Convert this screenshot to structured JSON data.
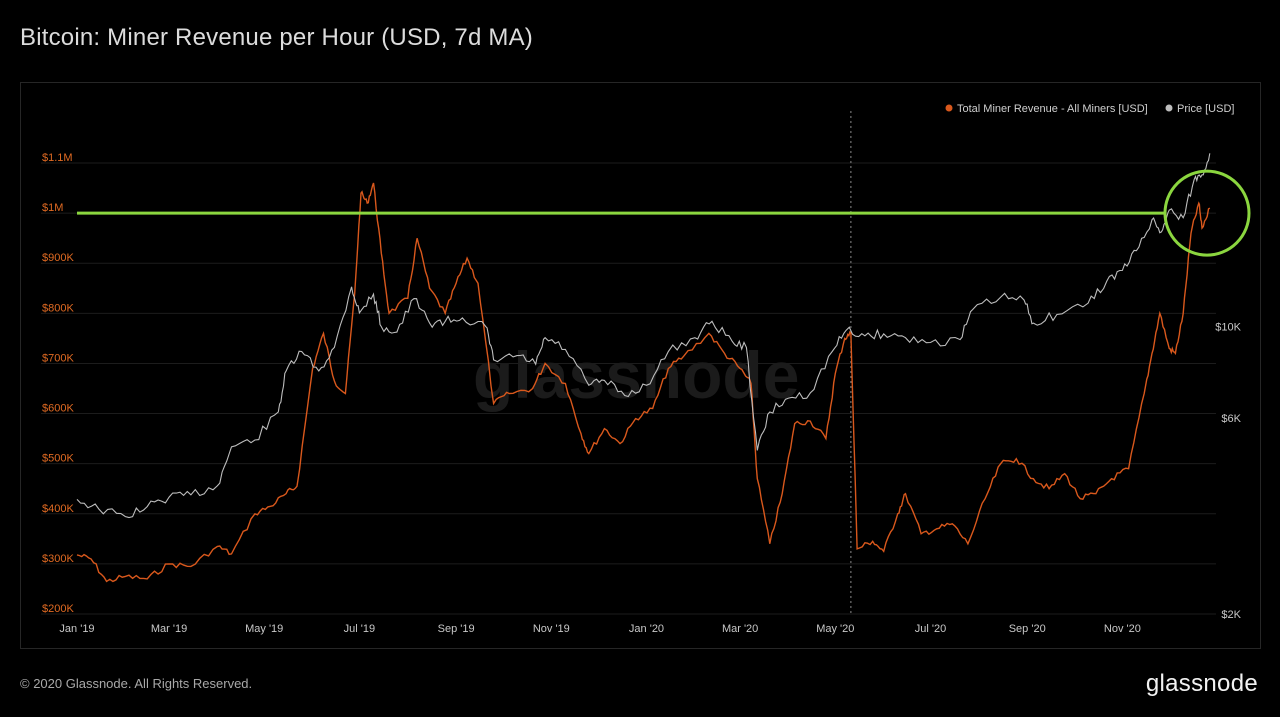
{
  "title": "Bitcoin: Miner Revenue per Hour (USD, 7d MA)",
  "footer": "© 2020 Glassnode. All Rights Reserved.",
  "brand": "glassnode",
  "watermark": "glassnode",
  "colors": {
    "revenue": "#d9581c",
    "price": "#bdbdbd",
    "hline": "#8bd63f",
    "grid": "#1c1c1c"
  },
  "chart_data": {
    "type": "line",
    "title": "Bitcoin: Miner Revenue per Hour (USD, 7d MA)",
    "legend": {
      "placement": "top-right"
    },
    "grid": true,
    "x": {
      "range": [
        "2019-01-01",
        "2020-12-31"
      ],
      "ticks": [
        {
          "date": "2019-01-01",
          "label": "Jan '19"
        },
        {
          "date": "2019-03-01",
          "label": "Mar '19"
        },
        {
          "date": "2019-05-01",
          "label": "May '19"
        },
        {
          "date": "2019-07-01",
          "label": "Jul '19"
        },
        {
          "date": "2019-09-01",
          "label": "Sep '19"
        },
        {
          "date": "2019-11-01",
          "label": "Nov '19"
        },
        {
          "date": "2020-01-01",
          "label": "Jan '20"
        },
        {
          "date": "2020-03-01",
          "label": "Mar '20"
        },
        {
          "date": "2020-05-01",
          "label": "May '20"
        },
        {
          "date": "2020-07-01",
          "label": "Jul '20"
        },
        {
          "date": "2020-09-01",
          "label": "Sep '20"
        },
        {
          "date": "2020-11-01",
          "label": "Nov '20"
        }
      ]
    },
    "y_left": {
      "range": [
        200000,
        1100000
      ],
      "ticks": [
        {
          "value": 200000,
          "label": "$200K"
        },
        {
          "value": 300000,
          "label": "$300K"
        },
        {
          "value": 400000,
          "label": "$400K"
        },
        {
          "value": 500000,
          "label": "$500K"
        },
        {
          "value": 600000,
          "label": "$600K"
        },
        {
          "value": 700000,
          "label": "$700K"
        },
        {
          "value": 800000,
          "label": "$800K"
        },
        {
          "value": 900000,
          "label": "$900K"
        },
        {
          "value": 1000000,
          "label": "$1M"
        },
        {
          "value": 1100000,
          "label": "$1.1M"
        }
      ]
    },
    "y_right": {
      "scale": "log",
      "range": [
        2000,
        25000
      ],
      "ticks": [
        {
          "value": 2000,
          "label": "$2K"
        },
        {
          "value": 6000,
          "label": "$6K"
        },
        {
          "value": 10000,
          "label": "$10K"
        }
      ]
    },
    "annotations": {
      "horizontal_line": {
        "value": 1000000,
        "axis": "left"
      },
      "vertical_dotted_line": {
        "date": "2020-05-11"
      },
      "circle": {
        "date": "2020-12-20",
        "value": 1000000
      }
    },
    "series": [
      {
        "name": "Total Miner Revenue - All Miners [USD]",
        "axis": "left",
        "points": [
          [
            "2019-01-01",
            318000
          ],
          [
            "2019-01-10",
            310000
          ],
          [
            "2019-01-20",
            265000
          ],
          [
            "2019-02-01",
            275000
          ],
          [
            "2019-02-15",
            270000
          ],
          [
            "2019-03-01",
            300000
          ],
          [
            "2019-03-15",
            295000
          ],
          [
            "2019-04-01",
            335000
          ],
          [
            "2019-04-10",
            320000
          ],
          [
            "2019-04-25",
            400000
          ],
          [
            "2019-05-05",
            415000
          ],
          [
            "2019-05-15",
            440000
          ],
          [
            "2019-05-22",
            455000
          ],
          [
            "2019-06-01",
            690000
          ],
          [
            "2019-06-08",
            760000
          ],
          [
            "2019-06-15",
            665000
          ],
          [
            "2019-06-22",
            640000
          ],
          [
            "2019-06-28",
            840000
          ],
          [
            "2019-07-02",
            1040000
          ],
          [
            "2019-07-06",
            1020000
          ],
          [
            "2019-07-10",
            1060000
          ],
          [
            "2019-07-15",
            920000
          ],
          [
            "2019-07-20",
            800000
          ],
          [
            "2019-08-01",
            830000
          ],
          [
            "2019-08-07",
            950000
          ],
          [
            "2019-08-15",
            850000
          ],
          [
            "2019-08-25",
            800000
          ],
          [
            "2019-09-01",
            860000
          ],
          [
            "2019-09-08",
            910000
          ],
          [
            "2019-09-15",
            860000
          ],
          [
            "2019-09-25",
            620000
          ],
          [
            "2019-10-05",
            640000
          ],
          [
            "2019-10-20",
            650000
          ],
          [
            "2019-10-28",
            700000
          ],
          [
            "2019-11-10",
            660000
          ],
          [
            "2019-11-20",
            560000
          ],
          [
            "2019-11-25",
            520000
          ],
          [
            "2019-12-05",
            570000
          ],
          [
            "2019-12-15",
            540000
          ],
          [
            "2019-12-25",
            590000
          ],
          [
            "2020-01-05",
            610000
          ],
          [
            "2020-01-15",
            690000
          ],
          [
            "2020-01-25",
            715000
          ],
          [
            "2020-02-10",
            760000
          ],
          [
            "2020-02-20",
            720000
          ],
          [
            "2020-03-01",
            690000
          ],
          [
            "2020-03-08",
            660000
          ],
          [
            "2020-03-12",
            470000
          ],
          [
            "2020-03-20",
            340000
          ],
          [
            "2020-03-28",
            440000
          ],
          [
            "2020-04-05",
            580000
          ],
          [
            "2020-04-15",
            585000
          ],
          [
            "2020-04-25",
            550000
          ],
          [
            "2020-05-01",
            680000
          ],
          [
            "2020-05-07",
            750000
          ],
          [
            "2020-05-11",
            760000
          ],
          [
            "2020-05-15",
            330000
          ],
          [
            "2020-05-25",
            345000
          ],
          [
            "2020-06-01",
            325000
          ],
          [
            "2020-06-10",
            400000
          ],
          [
            "2020-06-15",
            440000
          ],
          [
            "2020-06-25",
            360000
          ],
          [
            "2020-07-05",
            370000
          ],
          [
            "2020-07-15",
            380000
          ],
          [
            "2020-07-25",
            340000
          ],
          [
            "2020-08-05",
            430000
          ],
          [
            "2020-08-15",
            500000
          ],
          [
            "2020-08-25",
            510000
          ],
          [
            "2020-09-05",
            470000
          ],
          [
            "2020-09-15",
            450000
          ],
          [
            "2020-09-25",
            480000
          ],
          [
            "2020-10-05",
            430000
          ],
          [
            "2020-10-15",
            440000
          ],
          [
            "2020-10-25",
            470000
          ],
          [
            "2020-11-05",
            490000
          ],
          [
            "2020-11-15",
            640000
          ],
          [
            "2020-11-20",
            720000
          ],
          [
            "2020-11-25",
            800000
          ],
          [
            "2020-12-01",
            730000
          ],
          [
            "2020-12-05",
            720000
          ],
          [
            "2020-12-10",
            800000
          ],
          [
            "2020-12-15",
            960000
          ],
          [
            "2020-12-20",
            1020000
          ],
          [
            "2020-12-22",
            970000
          ],
          [
            "2020-12-27",
            1010000
          ]
        ]
      },
      {
        "name": "Price [USD]",
        "axis": "right",
        "points": [
          [
            "2019-01-01",
            3800
          ],
          [
            "2019-01-15",
            3600
          ],
          [
            "2019-02-01",
            3450
          ],
          [
            "2019-02-15",
            3650
          ],
          [
            "2019-03-01",
            3850
          ],
          [
            "2019-03-15",
            3900
          ],
          [
            "2019-04-01",
            4100
          ],
          [
            "2019-04-10",
            5100
          ],
          [
            "2019-04-25",
            5300
          ],
          [
            "2019-05-10",
            6200
          ],
          [
            "2019-05-15",
            7800
          ],
          [
            "2019-05-25",
            8700
          ],
          [
            "2019-06-05",
            7800
          ],
          [
            "2019-06-15",
            8900
          ],
          [
            "2019-06-26",
            12500
          ],
          [
            "2019-07-01",
            10800
          ],
          [
            "2019-07-10",
            12000
          ],
          [
            "2019-07-15",
            10000
          ],
          [
            "2019-07-25",
            9700
          ],
          [
            "2019-08-05",
            11700
          ],
          [
            "2019-08-15",
            10200
          ],
          [
            "2019-08-25",
            10300
          ],
          [
            "2019-09-05",
            10500
          ],
          [
            "2019-09-20",
            10000
          ],
          [
            "2019-09-25",
            8300
          ],
          [
            "2019-10-10",
            8500
          ],
          [
            "2019-10-22",
            8100
          ],
          [
            "2019-10-28",
            9400
          ],
          [
            "2019-11-10",
            8800
          ],
          [
            "2019-11-25",
            7200
          ],
          [
            "2019-12-05",
            7400
          ],
          [
            "2019-12-18",
            6800
          ],
          [
            "2020-01-01",
            7200
          ],
          [
            "2020-01-15",
            8700
          ],
          [
            "2020-02-01",
            9400
          ],
          [
            "2020-02-12",
            10300
          ],
          [
            "2020-02-25",
            9200
          ],
          [
            "2020-03-05",
            8900
          ],
          [
            "2020-03-12",
            5000
          ],
          [
            "2020-03-20",
            6200
          ],
          [
            "2020-04-01",
            6700
          ],
          [
            "2020-04-15",
            6900
          ],
          [
            "2020-04-29",
            8700
          ],
          [
            "2020-05-08",
            9800
          ],
          [
            "2020-05-20",
            9500
          ],
          [
            "2020-06-01",
            9600
          ],
          [
            "2020-06-15",
            9400
          ],
          [
            "2020-07-01",
            9150
          ],
          [
            "2020-07-20",
            9300
          ],
          [
            "2020-07-28",
            11000
          ],
          [
            "2020-08-15",
            11800
          ],
          [
            "2020-08-30",
            11600
          ],
          [
            "2020-09-05",
            10200
          ],
          [
            "2020-09-20",
            10700
          ],
          [
            "2020-10-10",
            11400
          ],
          [
            "2020-10-22",
            12900
          ],
          [
            "2020-11-01",
            13700
          ],
          [
            "2020-11-10",
            15300
          ],
          [
            "2020-11-20",
            18200
          ],
          [
            "2020-11-26",
            17000
          ],
          [
            "2020-12-01",
            19200
          ],
          [
            "2020-12-10",
            18400
          ],
          [
            "2020-12-17",
            22800
          ],
          [
            "2020-12-22",
            23400
          ],
          [
            "2020-12-27",
            26400
          ]
        ]
      }
    ]
  }
}
